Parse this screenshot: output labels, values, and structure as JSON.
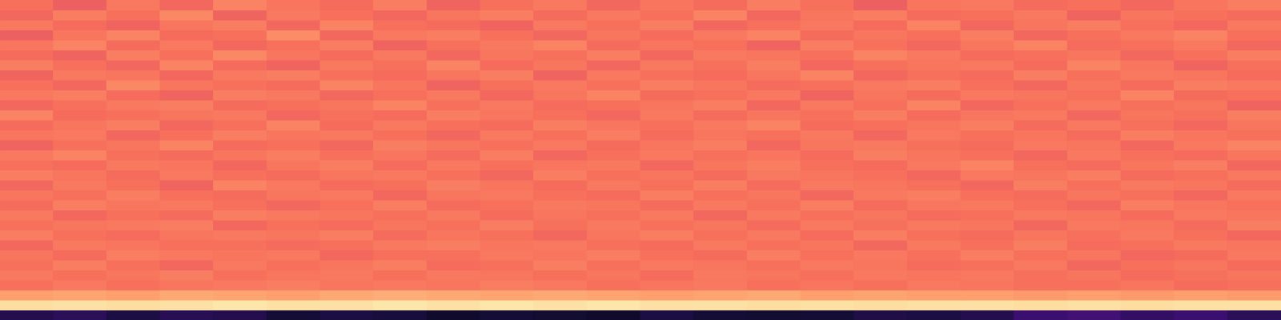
{
  "chart_data": {
    "type": "heatmap",
    "tick_labels": false,
    "zlim": [
      0,
      100
    ],
    "cells": [
      [
        70,
        66,
        72,
        68,
        74,
        71,
        69,
        73,
        67,
        70,
        72,
        68,
        71,
        69,
        73,
        70,
        66,
        71,
        72,
        69,
        70,
        68,
        71,
        73
      ],
      [
        68,
        73,
        70,
        75,
        67,
        72,
        70,
        68,
        71,
        73,
        69,
        72,
        70,
        74,
        68,
        71,
        73,
        69,
        70,
        72,
        67,
        71,
        70,
        69
      ],
      [
        72,
        69,
        67,
        71,
        73,
        68,
        74,
        70,
        69,
        67,
        72,
        70,
        73,
        68,
        70,
        72,
        69,
        74,
        68,
        71,
        73,
        70,
        68,
        72
      ],
      [
        66,
        71,
        74,
        69,
        70,
        76,
        68,
        72,
        73,
        70,
        68,
        71,
        69,
        72,
        74,
        69,
        71,
        70,
        73,
        68,
        70,
        72,
        74,
        70
      ],
      [
        71,
        74,
        69,
        72,
        68,
        70,
        73,
        67,
        70,
        72,
        74,
        69,
        71,
        70,
        67,
        73,
        70,
        68,
        71,
        74,
        69,
        70,
        72,
        68
      ],
      [
        69,
        67,
        73,
        70,
        75,
        71,
        69,
        72,
        68,
        71,
        70,
        73,
        68,
        72,
        71,
        70,
        74,
        72,
        69,
        70,
        71,
        68,
        70,
        73
      ],
      [
        73,
        70,
        68,
        74,
        69,
        67,
        72,
        70,
        74,
        69,
        71,
        68,
        72,
        70,
        73,
        68,
        70,
        71,
        72,
        69,
        74,
        71,
        67,
        70
      ],
      [
        67,
        72,
        71,
        68,
        72,
        73,
        70,
        69,
        71,
        73,
        67,
        72,
        70,
        69,
        71,
        74,
        68,
        70,
        69,
        73,
        70,
        72,
        71,
        69
      ],
      [
        70,
        68,
        75,
        71,
        70,
        69,
        74,
        71,
        67,
        70,
        72,
        70,
        73,
        71,
        69,
        70,
        72,
        73,
        70,
        68,
        71,
        69,
        73,
        72
      ],
      [
        72,
        73,
        69,
        67,
        73,
        72,
        68,
        70,
        72,
        68,
        71,
        74,
        69,
        70,
        72,
        67,
        71,
        69,
        72,
        71,
        70,
        74,
        69,
        70
      ],
      [
        68,
        70,
        72,
        73,
        69,
        70,
        71,
        74,
        70,
        72,
        69,
        70,
        71,
        73,
        68,
        72,
        70,
        74,
        68,
        70,
        72,
        70,
        71,
        67
      ],
      [
        74,
        69,
        70,
        71,
        72,
        68,
        70,
        69,
        73,
        71,
        70,
        68,
        72,
        69,
        71,
        70,
        73,
        69,
        71,
        72,
        68,
        71,
        70,
        73
      ],
      [
        69,
        71,
        73,
        68,
        70,
        74,
        69,
        72,
        70,
        69,
        73,
        71,
        70,
        72,
        74,
        69,
        70,
        71,
        73,
        69,
        72,
        70,
        68,
        71
      ],
      [
        71,
        72,
        68,
        70,
        73,
        71,
        72,
        70,
        68,
        72,
        70,
        73,
        69,
        71,
        70,
        72,
        68,
        72,
        70,
        71,
        69,
        73,
        71,
        70
      ],
      [
        67,
        70,
        71,
        74,
        69,
        70,
        68,
        73,
        71,
        70,
        72,
        69,
        71,
        73,
        68,
        71,
        72,
        70,
        69,
        72,
        71,
        68,
        72,
        74
      ],
      [
        72,
        74,
        70,
        69,
        71,
        73,
        70,
        71,
        69,
        73,
        68,
        70,
        72,
        70,
        71,
        69,
        73,
        71,
        70,
        68,
        72,
        70,
        69,
        71
      ],
      [
        70,
        69,
        72,
        71,
        68,
        71,
        73,
        69,
        72,
        70,
        71,
        72,
        68,
        71,
        73,
        70,
        69,
        72,
        74,
        70,
        69,
        71,
        73,
        68
      ],
      [
        73,
        71,
        69,
        72,
        70,
        69,
        71,
        72,
        70,
        68,
        73,
        70,
        71,
        69,
        72,
        71,
        70,
        68,
        72,
        71,
        73,
        69,
        70,
        72
      ],
      [
        68,
        72,
        70,
        67,
        74,
        72,
        69,
        70,
        73,
        71,
        69,
        72,
        70,
        73,
        69,
        72,
        71,
        70,
        68,
        73,
        70,
        72,
        71,
        69
      ],
      [
        71,
        70,
        73,
        70,
        69,
        71,
        72,
        68,
        71,
        72,
        70,
        69,
        73,
        70,
        71,
        68,
        72,
        73,
        70,
        69,
        71,
        70,
        68,
        72
      ],
      [
        69,
        73,
        71,
        72,
        70,
        68,
        70,
        73,
        69,
        70,
        72,
        71,
        69,
        72,
        70,
        73,
        69,
        71,
        72,
        70,
        68,
        73,
        71,
        70
      ],
      [
        72,
        68,
        70,
        69,
        73,
        72,
        71,
        70,
        72,
        69,
        71,
        70,
        72,
        68,
        72,
        70,
        71,
        69,
        70,
        72,
        71,
        69,
        72,
        71
      ],
      [
        70,
        71,
        72,
        73,
        68,
        70,
        69,
        71,
        70,
        73,
        70,
        72,
        70,
        71,
        69,
        72,
        70,
        72,
        71,
        68,
        72,
        71,
        69,
        73
      ],
      [
        73,
        70,
        69,
        71,
        72,
        71,
        73,
        69,
        71,
        70,
        68,
        71,
        73,
        70,
        72,
        69,
        73,
        70,
        69,
        71,
        70,
        72,
        70,
        68
      ],
      [
        68,
        72,
        71,
        70,
        70,
        69,
        70,
        72,
        73,
        71,
        72,
        70,
        69,
        72,
        70,
        71,
        68,
        72,
        70,
        73,
        69,
        70,
        72,
        71
      ],
      [
        71,
        69,
        73,
        72,
        71,
        72,
        68,
        70,
        70,
        72,
        71,
        73,
        70,
        69,
        73,
        70,
        72,
        70,
        73,
        70,
        71,
        68,
        69,
        72
      ],
      [
        70,
        73,
        70,
        68,
        72,
        70,
        71,
        73,
        69,
        70,
        73,
        70,
        72,
        71,
        70,
        72,
        71,
        69,
        70,
        72,
        68,
        70,
        71,
        69
      ],
      [
        72,
        70,
        71,
        73,
        70,
        71,
        72,
        70,
        72,
        71,
        70,
        71,
        69,
        72,
        71,
        70,
        72,
        71,
        72,
        70,
        71,
        69,
        70,
        71
      ],
      [
        70,
        72,
        70,
        71,
        72,
        73,
        71,
        72,
        71,
        73,
        72,
        70,
        71,
        72,
        70,
        71,
        70,
        72,
        71,
        70,
        70,
        71,
        69,
        70
      ],
      [
        80,
        81,
        80,
        82,
        81,
        80,
        82,
        83,
        82,
        81,
        82,
        81,
        80,
        81,
        82,
        80,
        81,
        80,
        80,
        79,
        80,
        79,
        80,
        79
      ],
      [
        93,
        94,
        93,
        94,
        95,
        94,
        94,
        95,
        94,
        95,
        94,
        95,
        94,
        94,
        93,
        94,
        93,
        94,
        94,
        93,
        94,
        93,
        94,
        94
      ],
      [
        14,
        16,
        12,
        15,
        14,
        10,
        12,
        11,
        8,
        10,
        9,
        8,
        12,
        10,
        9,
        10,
        13,
        12,
        14,
        20,
        22,
        18,
        20,
        16
      ]
    ]
  }
}
